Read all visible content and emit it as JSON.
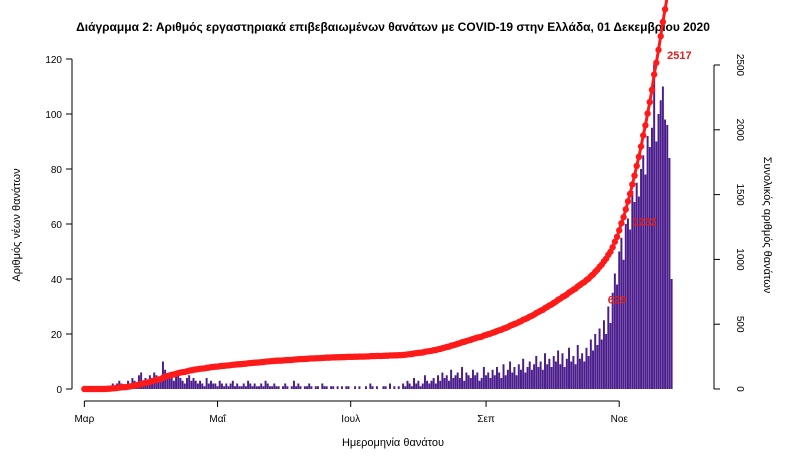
{
  "chart_data": {
    "type": "bar",
    "title": "Διάγραμμα 2: Αριθμός εργαστηριακά επιβεβαιωμένων θανάτων με COVID-19 στην Ελλάδα, 01 Δεκεμβρίου 2020",
    "xlabel": "Ημερομηνία θανάτου",
    "ylabel": "Αριθμός νέων θανάτων",
    "y2label": "Συνολικός αριθμός θανάτων",
    "ylim": [
      0,
      120
    ],
    "y2lim": [
      0,
      2500
    ],
    "yticks": [
      "0",
      "20",
      "40",
      "60",
      "80",
      "100",
      "120"
    ],
    "y2ticks": [
      "0",
      "500",
      "1000",
      "1500",
      "2000",
      "2500"
    ],
    "xticks": [
      {
        "label": "Μαρ",
        "day": 0
      },
      {
        "label": "Μαΐ",
        "day": 61
      },
      {
        "label": "Ιουλ",
        "day": 122
      },
      {
        "label": "Σεπ",
        "day": 184
      },
      {
        "label": "Νοε",
        "day": 245
      }
    ],
    "x_day_range": [
      -2,
      282
    ],
    "bar_color": "#4b1d8c",
    "line_color": "#ff1a1a",
    "series": [
      {
        "name": "Αριθμός νέων θανάτων",
        "kind": "bar",
        "values": [
          0,
          0,
          0,
          0,
          0,
          0,
          0,
          0,
          0,
          0,
          1,
          1,
          1,
          2,
          1,
          2,
          3,
          2,
          1,
          1,
          3,
          2,
          4,
          3,
          2,
          5,
          6,
          3,
          4,
          3,
          5,
          4,
          6,
          5,
          4,
          3,
          10,
          7,
          5,
          6,
          4,
          3,
          5,
          6,
          4,
          3,
          2,
          4,
          5,
          3,
          4,
          3,
          2,
          3,
          2,
          1,
          4,
          2,
          3,
          2,
          2,
          1,
          3,
          2,
          1,
          2,
          1,
          2,
          3,
          1,
          2,
          1,
          1,
          2,
          1,
          3,
          2,
          1,
          2,
          1,
          1,
          2,
          1,
          3,
          2,
          1,
          1,
          2,
          1,
          1,
          0,
          1,
          2,
          1,
          0,
          1,
          3,
          1,
          2,
          1,
          0,
          1,
          1,
          2,
          1,
          0,
          1,
          1,
          0,
          2,
          1,
          1,
          0,
          1,
          1,
          0,
          1,
          0,
          1,
          0,
          1,
          1,
          0,
          0,
          1,
          0,
          1,
          0,
          0,
          1,
          0,
          2,
          1,
          0,
          1,
          0,
          0,
          1,
          1,
          0,
          2,
          0,
          1,
          0,
          1,
          0,
          2,
          1,
          3,
          2,
          1,
          4,
          2,
          3,
          1,
          2,
          5,
          3,
          2,
          3,
          4,
          2,
          5,
          3,
          6,
          4,
          5,
          3,
          7,
          4,
          5,
          6,
          4,
          8,
          3,
          6,
          5,
          4,
          7,
          5,
          6,
          3,
          4,
          8,
          5,
          6,
          4,
          7,
          5,
          8,
          6,
          4,
          9,
          5,
          7,
          10,
          6,
          8,
          5,
          9,
          7,
          11,
          6,
          8,
          10,
          7,
          9,
          12,
          8,
          10,
          7,
          13,
          9,
          11,
          8,
          12,
          10,
          14,
          9,
          13,
          8,
          11,
          15,
          10,
          12,
          9,
          16,
          11,
          13,
          10,
          15,
          12,
          18,
          14,
          20,
          16,
          22,
          18,
          25,
          20,
          30,
          24,
          35,
          42,
          38,
          50,
          55,
          47,
          60,
          62,
          58,
          72,
          68,
          75,
          70,
          80,
          85,
          78,
          92,
          88,
          95,
          118,
          90,
          100,
          105,
          110,
          98,
          96,
          84,
          40
        ]
      },
      {
        "name": "Συνολικός αριθμός θανάτων",
        "kind": "line",
        "axis": "right"
      }
    ],
    "annotations": [
      {
        "text": "629",
        "day": 250,
        "value": 629
      },
      {
        "text": "1232",
        "day": 264,
        "value": 1232
      },
      {
        "text": "2517",
        "day": 280,
        "value": 2517
      }
    ]
  }
}
